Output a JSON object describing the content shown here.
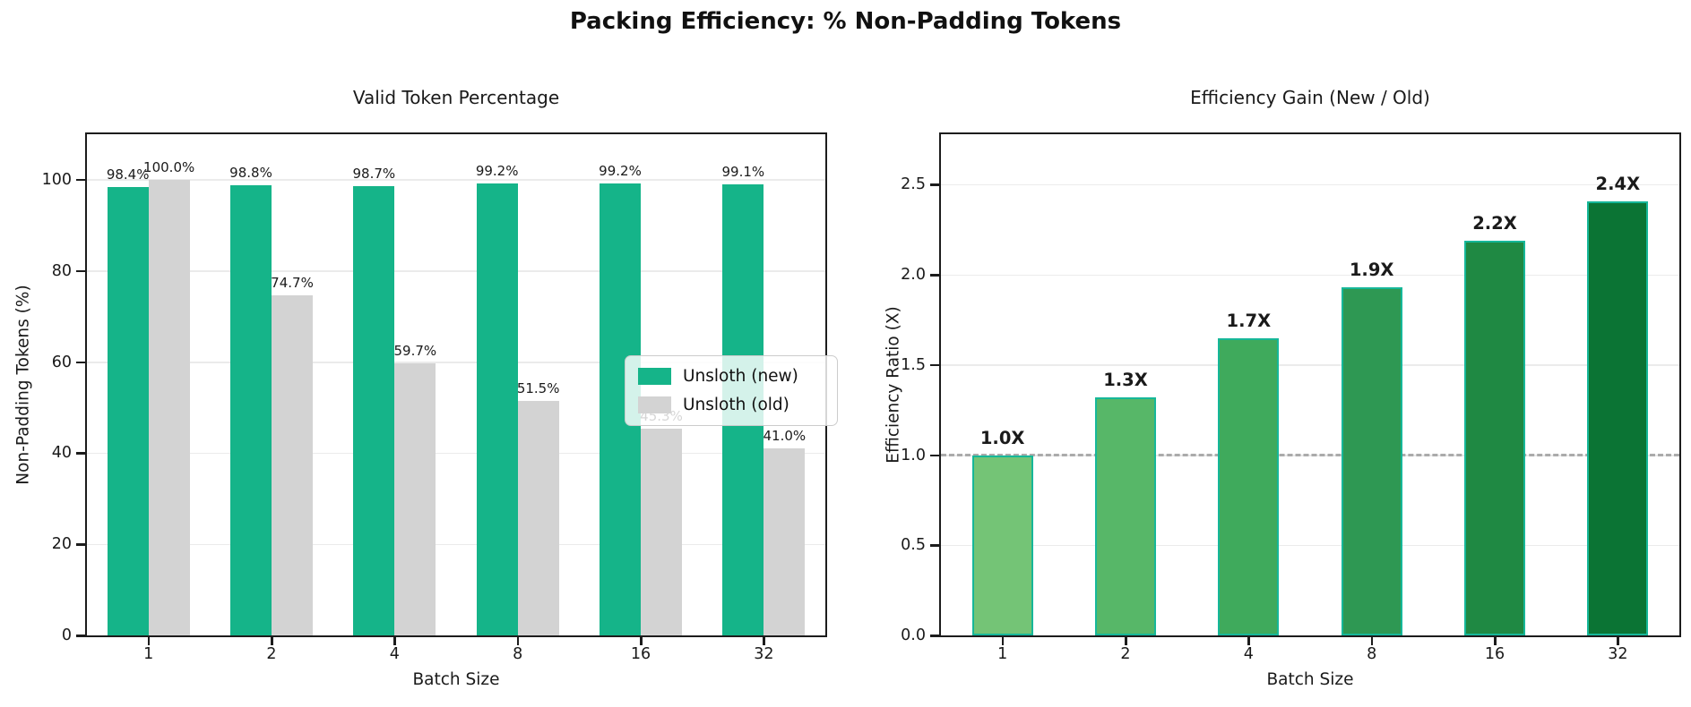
{
  "suptitle": "Packing Efficiency: % Non-Padding Tokens",
  "colors": {
    "unsloth_new_green": "#15b489",
    "unsloth_old_gray": "#d3d3d3",
    "bar_edge_teal": "#16b799",
    "reference_dash_gray": "#ababab",
    "grid_gray": "#ebebeb",
    "text": "#1a1a1a"
  },
  "chart_data": [
    {
      "type": "bar",
      "title": "Valid Token Percentage",
      "xlabel": "Batch Size",
      "ylabel": "Non-Padding Tokens (%)",
      "categories": [
        "1",
        "2",
        "4",
        "8",
        "16",
        "32"
      ],
      "series": [
        {
          "name": "Unsloth (new)",
          "color": "#15b489",
          "values": [
            98.4,
            98.8,
            98.7,
            99.2,
            99.2,
            99.1
          ],
          "labels": [
            "98.4%",
            "98.8%",
            "98.7%",
            "99.2%",
            "99.2%",
            "99.1%"
          ]
        },
        {
          "name": "Unsloth (old)",
          "color": "#d3d3d3",
          "values": [
            100.0,
            74.7,
            59.7,
            51.5,
            45.3,
            41.0
          ],
          "labels": [
            "100.0%",
            "74.7%",
            "59.7%",
            "51.5%",
            "45.3%",
            "41.0%"
          ]
        }
      ],
      "yticks": [
        "0",
        "20",
        "40",
        "60",
        "80",
        "100"
      ],
      "ylim": [
        0,
        110
      ],
      "grid": true,
      "legend": {
        "position": "center-right",
        "items": [
          "Unsloth (new)",
          "Unsloth (old)"
        ]
      }
    },
    {
      "type": "bar",
      "title": "Efficiency Gain (New / Old)",
      "xlabel": "Batch Size",
      "ylabel": "Efficiency Ratio (X)",
      "categories": [
        "1",
        "2",
        "4",
        "8",
        "16",
        "32"
      ],
      "values": [
        1.0,
        1.32,
        1.65,
        1.93,
        2.19,
        2.41
      ],
      "labels": [
        "1.0X",
        "1.3X",
        "1.7X",
        "1.9X",
        "2.2X",
        "2.4X"
      ],
      "bar_colors": [
        "#74c476",
        "#57b768",
        "#3faa5c",
        "#2e9853",
        "#1f8943",
        "#0b7434"
      ],
      "edge_color": "#16b799",
      "yticks": [
        "0.0",
        "0.5",
        "1.0",
        "1.5",
        "2.0",
        "2.5"
      ],
      "ylim": [
        0,
        2.78
      ],
      "grid": true,
      "reference_line": {
        "y": 1.0,
        "style": "dashed",
        "color": "#ababab"
      }
    }
  ]
}
